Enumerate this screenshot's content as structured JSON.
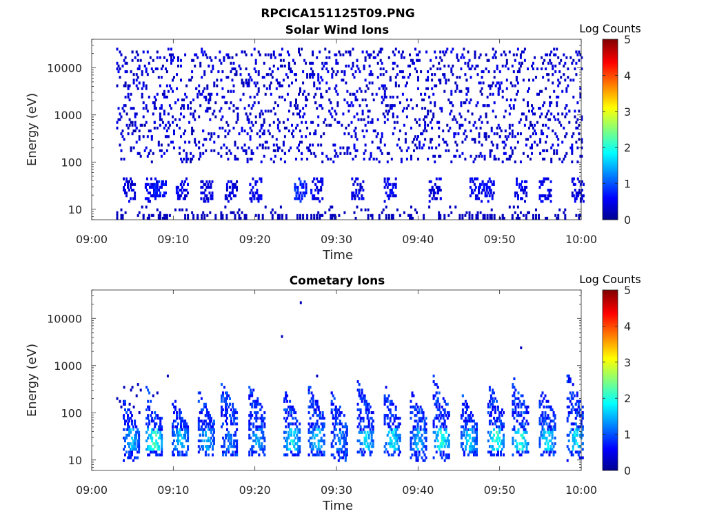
{
  "figure": {
    "filename": "RPCICA151125T09.PNG"
  },
  "chart_data": [
    {
      "type": "heatmap",
      "title": "Solar Wind Ions",
      "xlabel": "Time",
      "ylabel": "Energy (eV)",
      "y_scale": "log",
      "ylim": [
        6,
        40000
      ],
      "y_ticks": [
        10,
        100,
        1000,
        10000
      ],
      "y_tick_labels": [
        "10",
        "100",
        "1000",
        "10000"
      ],
      "x_tick_labels": [
        "09:00",
        "09:10",
        "09:20",
        "09:30",
        "09:40",
        "09:50",
        "10:00"
      ],
      "xlim_minutes": [
        0,
        60
      ],
      "data_start_minute": 3,
      "colorbar": {
        "label": "Log Counts",
        "min": 0,
        "max": 5,
        "ticks": [
          "0",
          "1",
          "2",
          "3",
          "4",
          "5"
        ],
        "colormap": "jet"
      },
      "description_of_values": "sparse counts mostly log 0-1 (dark blue) scattered from ~6 eV to ~30 keV, densest below 100 eV",
      "clusters": [
        {
          "minute": 4.5,
          "low": 15,
          "high": 45,
          "level": 0.5
        },
        {
          "minute": 7.2,
          "low": 15,
          "high": 45,
          "level": 0.6
        },
        {
          "minute": 8.3,
          "low": 18,
          "high": 40,
          "level": 0.8
        },
        {
          "minute": 11.0,
          "low": 15,
          "high": 45,
          "level": 0.6
        },
        {
          "minute": 14.0,
          "low": 15,
          "high": 40,
          "level": 0.5
        },
        {
          "minute": 17.0,
          "low": 15,
          "high": 40,
          "level": 0.5
        },
        {
          "minute": 20.0,
          "low": 15,
          "high": 45,
          "level": 0.6
        },
        {
          "minute": 25.5,
          "low": 15,
          "high": 45,
          "level": 0.8
        },
        {
          "minute": 27.5,
          "low": 15,
          "high": 45,
          "level": 0.6
        },
        {
          "minute": 32.5,
          "low": 15,
          "high": 45,
          "level": 0.6
        },
        {
          "minute": 36.5,
          "low": 15,
          "high": 45,
          "level": 0.6
        },
        {
          "minute": 42.0,
          "low": 15,
          "high": 45,
          "level": 0.5
        },
        {
          "minute": 47.0,
          "low": 15,
          "high": 45,
          "level": 0.6
        },
        {
          "minute": 48.5,
          "low": 15,
          "high": 45,
          "level": 0.6
        },
        {
          "minute": 52.5,
          "low": 15,
          "high": 45,
          "level": 0.6
        },
        {
          "minute": 55.5,
          "low": 15,
          "high": 45,
          "level": 0.6
        },
        {
          "minute": 59.5,
          "low": 15,
          "high": 45,
          "level": 0.5
        }
      ]
    },
    {
      "type": "heatmap",
      "title": "Cometary Ions",
      "xlabel": "Time",
      "ylabel": "Energy (eV)",
      "y_scale": "log",
      "ylim": [
        6,
        40000
      ],
      "y_ticks": [
        10,
        100,
        1000,
        10000
      ],
      "y_tick_labels": [
        "10",
        "100",
        "1000",
        "10000"
      ],
      "x_tick_labels": [
        "09:00",
        "09:10",
        "09:20",
        "09:30",
        "09:40",
        "09:50",
        "10:00"
      ],
      "xlim_minutes": [
        0,
        60
      ],
      "data_start_minute": 3,
      "colorbar": {
        "label": "Log Counts",
        "min": 0,
        "max": 5,
        "ticks": [
          "0",
          "1",
          "2",
          "3",
          "4",
          "5"
        ],
        "colormap": "jet"
      },
      "description_of_values": "periodic bursts at ~15-50 eV peaking near log 2-2.5, with dispersed tails up to ~500 eV",
      "isolated_points": [
        {
          "minute": 25.5,
          "energy": 22000,
          "level": 0.3
        },
        {
          "minute": 23.2,
          "energy": 4200,
          "level": 0.3
        },
        {
          "minute": 52.5,
          "energy": 2400,
          "level": 0.3
        },
        {
          "minute": 9.2,
          "energy": 600,
          "level": 0.3
        },
        {
          "minute": 27.5,
          "energy": 600,
          "level": 0.3
        }
      ],
      "bursts": [
        {
          "minute": 4.8,
          "low": 10,
          "high": 200,
          "peak": 1.5
        },
        {
          "minute": 7.6,
          "low": 12,
          "high": 350,
          "peak": 2.2
        },
        {
          "minute": 10.8,
          "low": 12,
          "high": 250,
          "peak": 1.6
        },
        {
          "minute": 14.0,
          "low": 12,
          "high": 300,
          "peak": 1.5
        },
        {
          "minute": 16.8,
          "low": 12,
          "high": 500,
          "peak": 1.2
        },
        {
          "minute": 20.2,
          "low": 12,
          "high": 450,
          "peak": 1.4
        },
        {
          "minute": 24.5,
          "low": 12,
          "high": 300,
          "peak": 1.8
        },
        {
          "minute": 27.5,
          "low": 12,
          "high": 400,
          "peak": 1.6
        },
        {
          "minute": 30.3,
          "low": 10,
          "high": 300,
          "peak": 1.3
        },
        {
          "minute": 33.5,
          "low": 12,
          "high": 500,
          "peak": 1.8
        },
        {
          "minute": 36.8,
          "low": 12,
          "high": 400,
          "peak": 1.8
        },
        {
          "minute": 40.0,
          "low": 10,
          "high": 350,
          "peak": 1.5
        },
        {
          "minute": 42.8,
          "low": 10,
          "high": 600,
          "peak": 2.0
        },
        {
          "minute": 46.2,
          "low": 12,
          "high": 300,
          "peak": 1.6
        },
        {
          "minute": 49.5,
          "low": 12,
          "high": 500,
          "peak": 2.0
        },
        {
          "minute": 52.5,
          "low": 12,
          "high": 600,
          "peak": 2.0
        },
        {
          "minute": 55.8,
          "low": 12,
          "high": 400,
          "peak": 1.8
        },
        {
          "minute": 59.2,
          "low": 10,
          "high": 700,
          "peak": 1.7
        }
      ]
    }
  ]
}
